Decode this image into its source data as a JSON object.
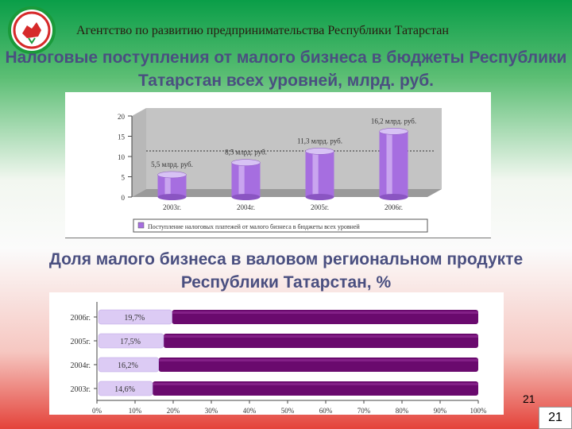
{
  "header": {
    "agency": "Агентство по развитию предпринимательства Республики Татарстан",
    "logo_icon": "tatarstan-emblem-icon"
  },
  "colors": {
    "emblem_green": "#1a9a3a",
    "emblem_red": "#d62a2a",
    "bar_purple": "#9b5fd4",
    "bar_dark_purple": "#6a0a6e",
    "bar_light": "#d8c6f2"
  },
  "sections": {
    "title1": "Налоговые поступления от малого бизнеса в бюджеты Республики Татарстан всех уровней, млрд. руб.",
    "title2": "Доля малого бизнеса в валовом региональном продукте Республики Татарстан, %"
  },
  "chart_data": [
    {
      "type": "bar",
      "categories": [
        "2003г.",
        "2004г.",
        "2005г.",
        "2006г."
      ],
      "values": [
        5.5,
        8.5,
        11.3,
        16.2
      ],
      "data_labels": [
        "5,5 млрд. руб.",
        "8,5 млрд. руб.",
        "11,3 млрд. руб.",
        "16,2 млрд. руб."
      ],
      "yticks": [
        "0",
        "5",
        "10",
        "15",
        "20"
      ],
      "ylim": [
        0,
        20
      ],
      "series": [
        {
          "name": "Поступление налоговых платежей от малого бизнеса в бюджеты всех уровней",
          "values": [
            5.5,
            8.5,
            11.3,
            16.2
          ]
        }
      ],
      "legend_position": "bottom",
      "grid": false
    },
    {
      "type": "bar",
      "orientation": "horizontal",
      "categories": [
        "2006г.",
        "2005г.",
        "2004г.",
        "2003г."
      ],
      "values": [
        19.7,
        17.5,
        16.2,
        14.6
      ],
      "data_labels": [
        "19,7%",
        "17,5%",
        "16,2%",
        "14,6%"
      ],
      "xticks": [
        "0%",
        "10%",
        "20%",
        "30%",
        "40%",
        "50%",
        "60%",
        "70%",
        "80%",
        "90%",
        "100%"
      ],
      "xlim": [
        0,
        100
      ],
      "stacked_100": true
    }
  ],
  "footer": {
    "page_small": "21",
    "page_box": "21"
  }
}
